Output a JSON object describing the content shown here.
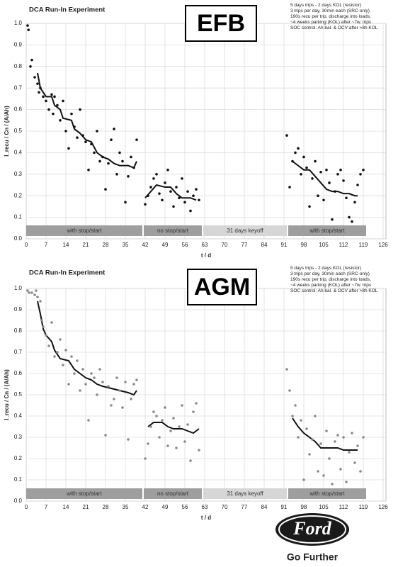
{
  "chart_data": [
    {
      "type": "scatter",
      "title": "DCA Run-In Experiment",
      "label": "EFB",
      "notes": [
        "5 days trips - 2 days KOL (resistor)",
        "3 trips per day, 30min each (SRC-only)",
        "190s recu per trip, discharge into loads,",
        "~4 weeks parking (KOL) after ~7w. trips",
        "SOC control: Ah bal. & OCV after >8h KOL"
      ],
      "xlabel": "t / d",
      "ylabel": "I_recu / Cn / (A/Ah)",
      "xlim": [
        0,
        127
      ],
      "ylim": [
        0,
        1
      ],
      "xticks": [
        0,
        7,
        14,
        21,
        28,
        35,
        42,
        49,
        56,
        63,
        70,
        77,
        84,
        91,
        98,
        105,
        112,
        119,
        126
      ],
      "yticks": [
        {
          "value": 0,
          "label": "0.0"
        },
        0.1,
        0.2,
        0.3,
        0.4,
        0.5,
        0.6,
        0.7,
        0.8,
        0.9,
        {
          "value": 1,
          "label": "1.0"
        }
      ],
      "grid": true,
      "phases": [
        {
          "label": "with stop/start",
          "start": 0,
          "end": 41
        },
        {
          "label": "no stop/start",
          "start": 41.5,
          "end": 62
        },
        {
          "label": "31 days keyoff",
          "start": 62.5,
          "end": 92
        },
        {
          "label": "with stop/start",
          "start": 92.5,
          "end": 120
        }
      ],
      "points": {
        "color": "#111111",
        "x": [
          0.5,
          0.8,
          1.5,
          2,
          3,
          4,
          4.5,
          5,
          6,
          7,
          8,
          9,
          9.5,
          10,
          11,
          12,
          13,
          14,
          15,
          16,
          17,
          18,
          19,
          20,
          21,
          22,
          23,
          24,
          25,
          26,
          27,
          28,
          29,
          30,
          31,
          32,
          33,
          34,
          35,
          36,
          37,
          38,
          39,
          42,
          43,
          44,
          45,
          46,
          47,
          48,
          49,
          50,
          51,
          52,
          53,
          54,
          55,
          56,
          57,
          58,
          59,
          60,
          61,
          92,
          93,
          94,
          95,
          96,
          97,
          98,
          99,
          100,
          101,
          102,
          103,
          104,
          105,
          106,
          107,
          108,
          109,
          110,
          111,
          112,
          113,
          114,
          115,
          116,
          117,
          118,
          119
        ],
        "y": [
          0.99,
          0.97,
          0.8,
          0.83,
          0.75,
          0.72,
          0.68,
          0.7,
          0.66,
          0.64,
          0.6,
          0.67,
          0.58,
          0.66,
          0.62,
          0.55,
          0.64,
          0.5,
          0.42,
          0.58,
          0.52,
          0.47,
          0.6,
          0.48,
          0.45,
          0.32,
          0.44,
          0.4,
          0.5,
          0.36,
          0.38,
          0.23,
          0.35,
          0.46,
          0.51,
          0.3,
          0.4,
          0.36,
          0.17,
          0.29,
          0.38,
          0.33,
          0.46,
          0.16,
          0.2,
          0.24,
          0.28,
          0.3,
          0.21,
          0.18,
          0.26,
          0.32,
          0.22,
          0.15,
          0.24,
          0.19,
          0.28,
          0.17,
          0.22,
          0.13,
          0.2,
          0.23,
          0.18,
          0.48,
          0.24,
          0.36,
          0.4,
          0.42,
          0.3,
          0.38,
          0.33,
          0.15,
          0.28,
          0.36,
          0.2,
          0.31,
          0.18,
          0.32,
          0.26,
          0.09,
          0.22,
          0.3,
          0.32,
          0.27,
          0.19,
          0.1,
          0.08,
          0.17,
          0.25,
          0.3,
          0.32
        ]
      },
      "trend": {
        "color": "#111111",
        "x": [
          4,
          5,
          7,
          9,
          10,
          12,
          13,
          16,
          17,
          19,
          21,
          23,
          25,
          27,
          29,
          31,
          33,
          36,
          38,
          39,
          null,
          42,
          44,
          46,
          49,
          51,
          53,
          55,
          58,
          60,
          null,
          94,
          96,
          98,
          100,
          102,
          104,
          106,
          108,
          110,
          112,
          114,
          116,
          117
        ],
        "y": [
          0.77,
          0.7,
          0.66,
          0.66,
          0.62,
          0.6,
          0.56,
          0.55,
          0.51,
          0.49,
          0.46,
          0.45,
          0.4,
          0.38,
          0.37,
          0.35,
          0.34,
          0.34,
          0.33,
          0.36,
          null,
          0.19,
          0.22,
          0.25,
          0.24,
          0.24,
          0.21,
          0.19,
          0.19,
          0.18,
          null,
          0.36,
          0.34,
          0.32,
          0.32,
          0.29,
          0.26,
          0.23,
          0.22,
          0.22,
          0.21,
          0.21,
          0.2,
          0.2
        ]
      }
    },
    {
      "type": "scatter",
      "title": "DCA Run-In Experiment",
      "label": "AGM",
      "notes": [
        "5 days trips - 2 days KOL (resistor)",
        "3 trips per day, 30min each (SRC-only)",
        "190s recu per trip, discharge into loads,",
        "~4 weeks parking (KOL) after ~7w. trips",
        "SOC control: Ah bal. & OCV after >8h KOL"
      ],
      "xlabel": "t / d",
      "ylabel": "I_recu / Cn / (A/Ah)",
      "xlim": [
        0,
        127
      ],
      "ylim": [
        0,
        1
      ],
      "xticks": [
        0,
        7,
        14,
        21,
        28,
        35,
        42,
        49,
        56,
        63,
        70,
        77,
        84,
        91,
        98,
        105,
        112,
        119,
        126
      ],
      "yticks": [
        {
          "value": 0,
          "label": "0.0"
        },
        0.1,
        0.2,
        0.3,
        0.4,
        0.5,
        0.6,
        0.7,
        0.8,
        0.9,
        {
          "value": 1,
          "label": "1.0"
        }
      ],
      "grid": true,
      "phases": [
        {
          "label": "with stop/start",
          "start": 0,
          "end": 41
        },
        {
          "label": "no stop/start",
          "start": 41.5,
          "end": 62
        },
        {
          "label": "31 days keyoff",
          "start": 62.5,
          "end": 92
        },
        {
          "label": "with stop/start",
          "start": 92.5,
          "end": 120
        }
      ],
      "points": {
        "color": "#8a8a8a",
        "x": [
          0.5,
          1,
          2,
          3,
          3.5,
          4,
          5,
          5.5,
          6,
          7,
          8,
          9,
          10,
          11,
          12,
          13,
          14,
          15,
          16,
          17,
          18,
          19,
          20,
          21,
          22,
          23,
          24,
          25,
          26,
          27,
          28,
          29,
          30,
          31,
          32,
          33,
          34,
          35,
          36,
          37,
          38,
          39,
          42,
          43,
          44,
          45,
          46,
          47,
          48,
          49,
          50,
          51,
          52,
          53,
          54,
          55,
          56,
          57,
          58,
          59,
          60,
          61,
          92,
          93,
          94,
          95,
          96,
          97,
          98,
          99,
          100,
          101,
          102,
          103,
          104,
          105,
          106,
          107,
          108,
          109,
          110,
          111,
          112,
          113,
          114,
          115,
          116,
          117,
          118,
          119
        ],
        "y": [
          0.99,
          0.98,
          0.98,
          0.97,
          0.99,
          0.96,
          0.94,
          0.85,
          0.82,
          0.78,
          0.73,
          0.84,
          0.68,
          0.7,
          0.76,
          0.64,
          0.71,
          0.55,
          0.68,
          0.6,
          0.66,
          0.52,
          0.62,
          0.55,
          0.38,
          0.6,
          0.58,
          0.5,
          0.62,
          0.56,
          0.31,
          0.54,
          0.45,
          0.48,
          0.58,
          0.52,
          0.44,
          0.56,
          0.29,
          0.48,
          0.55,
          0.57,
          0.2,
          0.27,
          0.35,
          0.42,
          0.4,
          0.3,
          0.38,
          0.44,
          0.26,
          0.33,
          0.39,
          0.25,
          0.35,
          0.45,
          0.28,
          0.36,
          0.19,
          0.42,
          0.46,
          0.24,
          0.62,
          0.52,
          0.4,
          0.45,
          0.3,
          0.38,
          0.1,
          0.34,
          0.22,
          0.29,
          0.4,
          0.14,
          0.27,
          0.12,
          0.33,
          0.2,
          0.08,
          0.28,
          0.31,
          0.15,
          0.3,
          0.09,
          0.23,
          0.32,
          0.18,
          0.26,
          0.14,
          0.3
        ]
      },
      "trend": {
        "color": "#111111",
        "x": [
          4,
          5,
          6,
          7,
          9,
          10,
          12,
          15,
          17,
          19,
          21,
          23,
          25,
          27,
          30,
          33,
          36,
          38,
          39,
          null,
          43,
          45,
          48,
          50,
          52,
          55,
          57,
          59,
          61,
          null,
          94,
          96,
          98,
          100,
          102,
          104,
          107,
          110,
          112,
          115,
          117
        ],
        "y": [
          0.94,
          0.88,
          0.81,
          0.78,
          0.75,
          0.71,
          0.67,
          0.66,
          0.62,
          0.6,
          0.58,
          0.57,
          0.55,
          0.54,
          0.53,
          0.52,
          0.51,
          0.5,
          0.52,
          null,
          0.35,
          0.37,
          0.37,
          0.35,
          0.34,
          0.34,
          0.33,
          0.32,
          0.34,
          null,
          0.39,
          0.35,
          0.32,
          0.3,
          0.28,
          0.25,
          0.25,
          0.25,
          0.24,
          0.24,
          0.24
        ]
      }
    }
  ],
  "logo": {
    "brand": "Ford",
    "tagline": "Go Further"
  }
}
